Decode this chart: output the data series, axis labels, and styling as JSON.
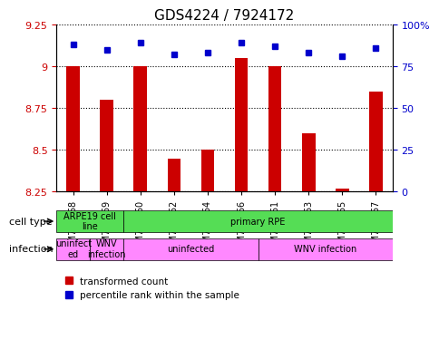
{
  "title": "GDS4224 / 7924172",
  "samples": [
    "GSM762068",
    "GSM762069",
    "GSM762060",
    "GSM762062",
    "GSM762064",
    "GSM762066",
    "GSM762061",
    "GSM762063",
    "GSM762065",
    "GSM762067"
  ],
  "transformed_counts": [
    9.0,
    8.8,
    9.0,
    8.45,
    8.5,
    9.05,
    9.0,
    8.6,
    8.27,
    8.85
  ],
  "percentile_ranks": [
    88,
    85,
    89,
    82,
    83,
    89,
    87,
    83,
    81,
    86
  ],
  "ylim_left": [
    8.25,
    9.25
  ],
  "ylim_right": [
    0,
    100
  ],
  "yticks_left": [
    8.25,
    8.5,
    8.75,
    9.0,
    9.25
  ],
  "yticks_right": [
    0,
    25,
    50,
    75,
    100
  ],
  "ytick_labels_left": [
    "8.25",
    "8.5",
    "8.75",
    "9",
    "9.25"
  ],
  "ytick_labels_right": [
    "0",
    "25",
    "50",
    "75",
    "100%"
  ],
  "bar_color": "#cc0000",
  "dot_color": "#0000cc",
  "grid_color": "#000000",
  "cell_type_colors": {
    "ARPE19 cell line": "#66ff66",
    "primary RPE": "#66ff66"
  },
  "infection_colors": {
    "uninfected_small": "#ff99ff",
    "WNV_small": "#ff99ff",
    "uninfected": "#ff99ff",
    "WNV infection": "#ff99ff"
  },
  "cell_type_row": [
    {
      "label": "ARPE19 cell\nline",
      "start": 0,
      "end": 2,
      "color": "#66ee66"
    },
    {
      "label": "primary RPE",
      "start": 2,
      "end": 10,
      "color": "#66ee66"
    }
  ],
  "infection_row": [
    {
      "label": "uninfect\ned",
      "start": 0,
      "end": 1,
      "color": "#ff88ff"
    },
    {
      "label": "WNV\ninfection",
      "start": 1,
      "end": 2,
      "color": "#ff88ff"
    },
    {
      "label": "uninfected",
      "start": 2,
      "end": 6,
      "color": "#ff88ff"
    },
    {
      "label": "WNV infection",
      "start": 6,
      "end": 10,
      "color": "#ff88ff"
    }
  ],
  "legend_items": [
    {
      "label": "transformed count",
      "color": "#cc0000",
      "marker": "s"
    },
    {
      "label": "percentile rank within the sample",
      "color": "#0000cc",
      "marker": "s"
    }
  ]
}
